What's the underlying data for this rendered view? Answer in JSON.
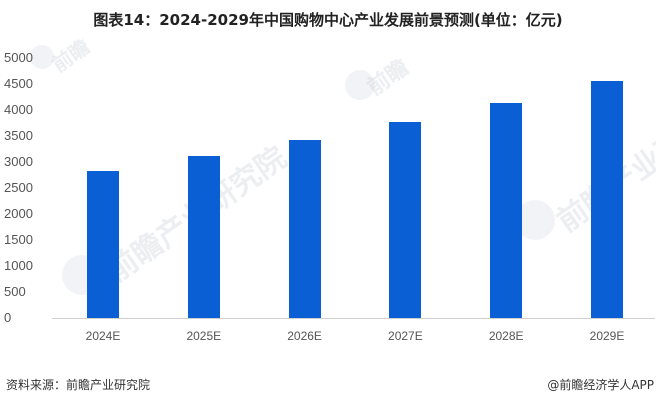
{
  "title": "图表14：2024-2029年中国购物中心产业发展前景预测(单位：亿元)",
  "footer": {
    "source": "资料来源：前瞻产业研究院",
    "credit": "@前瞻经济学人APP"
  },
  "watermark": {
    "text": "前瞻产业研究院",
    "short": "前瞻"
  },
  "colors": {
    "bar": "#0a5fd4",
    "axis": "#d0d0d0",
    "text": "#555555"
  },
  "chart_data": {
    "type": "bar",
    "title": "图表14：2024-2029年中国购物中心产业发展前景预测(单位：亿元)",
    "xlabel": "",
    "ylabel": "",
    "unit": "亿元",
    "categories": [
      "2024E",
      "2025E",
      "2026E",
      "2027E",
      "2028E",
      "2029E"
    ],
    "values": [
      2827,
      3115,
      3423,
      3769,
      4135,
      4558
    ],
    "ylim": [
      0,
      5000
    ],
    "yticks": [
      0,
      500,
      1000,
      1500,
      2000,
      2500,
      3000,
      3500,
      4000,
      4500,
      5000
    ],
    "grid": false,
    "legend": null
  }
}
